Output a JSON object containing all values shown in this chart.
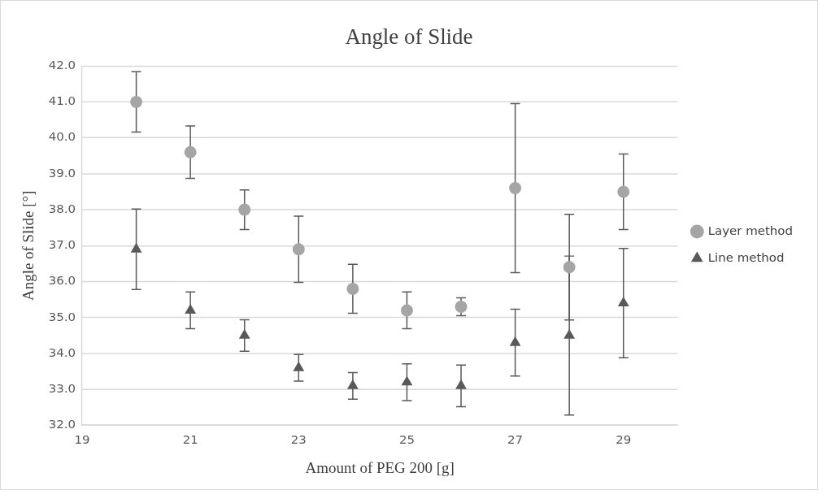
{
  "chart_data": {
    "type": "scatter",
    "title": "Angle of Slide",
    "xlabel": "Amount of PEG 200 [g]",
    "ylabel": "Angle of Slide [°]",
    "x": [
      20,
      21,
      22,
      23,
      24,
      25,
      26,
      27,
      28,
      29
    ],
    "series": [
      {
        "name": "Layer method",
        "color": "#a5a5a5",
        "marker": "circle",
        "values": [
          41.0,
          39.6,
          38.0,
          36.9,
          35.8,
          35.2,
          35.3,
          38.6,
          36.4,
          38.5
        ],
        "errors": [
          0.84,
          0.73,
          0.55,
          0.92,
          0.68,
          0.51,
          0.25,
          2.35,
          1.47,
          1.05
        ]
      },
      {
        "name": "Line method",
        "color": "#595959",
        "marker": "triangle",
        "values": [
          36.9,
          35.2,
          34.5,
          33.6,
          33.1,
          33.2,
          33.1,
          34.3,
          34.5,
          35.4
        ],
        "errors": [
          1.12,
          0.51,
          0.44,
          0.37,
          0.37,
          0.51,
          0.58,
          0.93,
          2.21,
          1.52
        ]
      }
    ],
    "xlim": [
      19,
      30
    ],
    "xticks": [
      19,
      21,
      23,
      25,
      27,
      29
    ],
    "ylim": [
      32,
      42
    ],
    "yticks": [
      {
        "value": 32,
        "label": "32.0"
      },
      {
        "value": 33,
        "label": "33.0"
      },
      {
        "value": 34,
        "label": "34.0"
      },
      {
        "value": 35,
        "label": "35.0"
      },
      {
        "value": 36,
        "label": "36.0"
      },
      {
        "value": 37,
        "label": "37.0"
      },
      {
        "value": 38,
        "label": "38.0"
      },
      {
        "value": 39,
        "label": "39.0"
      },
      {
        "value": 40,
        "label": "40.0"
      },
      {
        "value": 41,
        "label": "41.0"
      },
      {
        "value": 42,
        "label": "42.0"
      }
    ],
    "grid": "y",
    "legend": "right"
  }
}
